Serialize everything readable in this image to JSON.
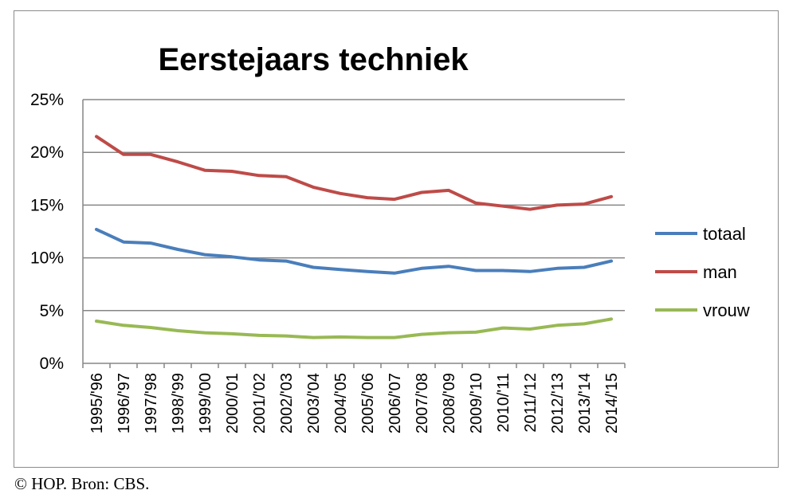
{
  "credit": "© HOP. Bron: CBS.",
  "chart_data": {
    "type": "line",
    "title": "Eerstejaars techniek",
    "categories": [
      "1995/'96",
      "1996/'97",
      "1997/'98",
      "1998/'99",
      "1999/'00",
      "2000/'01",
      "2001/'02",
      "2002/'03",
      "2003/'04",
      "2004/'05",
      "2005/'06",
      "2006/'07",
      "2007/'08",
      "2008/'09",
      "2009/'10",
      "2010/'11",
      "2011/'12",
      "2012/'13",
      "2013/'14",
      "2014/'15"
    ],
    "y_ticks": [
      "0%",
      "5%",
      "10%",
      "15%",
      "20%",
      "25%"
    ],
    "ylim": [
      0,
      25
    ],
    "grid": true,
    "legend_position": "right",
    "series": [
      {
        "name": "totaal",
        "color": "#4a7ebb",
        "values": [
          12.7,
          11.5,
          11.4,
          10.8,
          10.3,
          10.1,
          9.8,
          9.7,
          9.1,
          8.9,
          8.7,
          8.55,
          9.0,
          9.2,
          8.8,
          8.8,
          8.7,
          9.0,
          9.1,
          9.7
        ]
      },
      {
        "name": "man",
        "color": "#be4b48",
        "values": [
          21.5,
          19.8,
          19.8,
          19.1,
          18.3,
          18.2,
          17.8,
          17.7,
          16.7,
          16.1,
          15.7,
          15.55,
          16.2,
          16.4,
          15.2,
          14.9,
          14.6,
          15.0,
          15.1,
          15.8
        ]
      },
      {
        "name": "vrouw",
        "color": "#98b954",
        "values": [
          4.0,
          3.6,
          3.4,
          3.1,
          2.9,
          2.8,
          2.65,
          2.6,
          2.45,
          2.5,
          2.45,
          2.45,
          2.75,
          2.9,
          2.95,
          3.35,
          3.25,
          3.6,
          3.75,
          4.2
        ]
      }
    ]
  }
}
